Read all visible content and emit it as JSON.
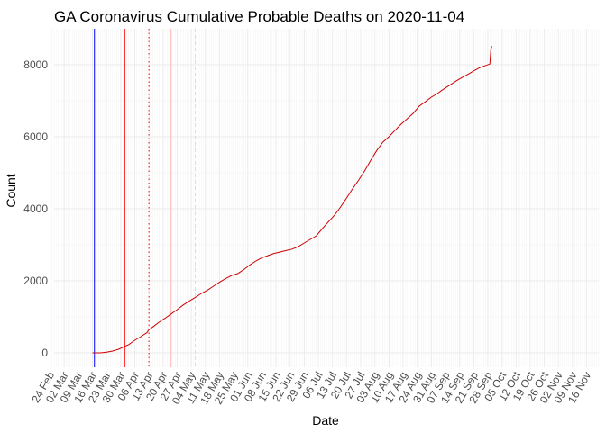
{
  "chart_data": {
    "type": "line",
    "title": "GA Coronavirus Cumulative Probable Deaths on 2020-11-04",
    "xlabel": "Date",
    "ylabel": "Count",
    "x_range_days": [
      -5,
      265
    ],
    "ylim": [
      -400,
      9000
    ],
    "x_origin_date": "2020-03-02",
    "y_ticks": [
      0,
      2000,
      4000,
      6000,
      8000
    ],
    "x_tick_labels": [
      "24 Feb",
      "02 Mar",
      "09 Mar",
      "16 Mar",
      "23 Mar",
      "30 Mar",
      "06 Apr",
      "13 Apr",
      "20 Apr",
      "27 Apr",
      "04 May",
      "11 May",
      "18 May",
      "25 May",
      "01 Jun",
      "08 Jun",
      "15 Jun",
      "22 Jun",
      "29 Jun",
      "06 Jul",
      "13 Jul",
      "20 Jul",
      "27 Jul",
      "03 Aug",
      "10 Aug",
      "17 Aug",
      "24 Aug",
      "31 Aug",
      "07 Sep",
      "14 Sep",
      "21 Sep",
      "28 Sep",
      "05 Oct",
      "12 Oct",
      "19 Oct",
      "26 Oct",
      "02 Nov",
      "09 Nov",
      "16 Nov"
    ],
    "x_tick_days": [
      -7,
      0,
      7,
      14,
      21,
      28,
      35,
      42,
      49,
      56,
      63,
      70,
      77,
      84,
      91,
      98,
      105,
      112,
      119,
      126,
      133,
      140,
      147,
      154,
      161,
      168,
      175,
      182,
      189,
      196,
      203,
      210,
      217,
      224,
      231,
      238,
      245,
      252,
      259
    ],
    "reference_lines": [
      {
        "day": 15,
        "color": "#0000ff",
        "style": "solid"
      },
      {
        "day": 30,
        "color": "#ff0000",
        "style": "solid"
      },
      {
        "day": 42,
        "color": "#ff0000",
        "style": "dotted"
      },
      {
        "day": 53,
        "color": "#ffb3b3",
        "style": "solid"
      },
      {
        "day": 65,
        "color": "#d9d9d9",
        "style": "dashed"
      }
    ],
    "series": [
      {
        "name": "Cumulative Probable Deaths",
        "color": "#cc0000",
        "points": [
          [
            14,
            0
          ],
          [
            18,
            0
          ],
          [
            21,
            20
          ],
          [
            24,
            50
          ],
          [
            27,
            100
          ],
          [
            30,
            180
          ],
          [
            32,
            230
          ],
          [
            35,
            350
          ],
          [
            38,
            450
          ],
          [
            41,
            560
          ],
          [
            42,
            640
          ],
          [
            44,
            720
          ],
          [
            47,
            850
          ],
          [
            50,
            960
          ],
          [
            53,
            1080
          ],
          [
            56,
            1200
          ],
          [
            59,
            1330
          ],
          [
            62,
            1440
          ],
          [
            65,
            1540
          ],
          [
            68,
            1650
          ],
          [
            71,
            1740
          ],
          [
            74,
            1850
          ],
          [
            77,
            1960
          ],
          [
            80,
            2060
          ],
          [
            83,
            2150
          ],
          [
            86,
            2200
          ],
          [
            89,
            2310
          ],
          [
            92,
            2440
          ],
          [
            95,
            2550
          ],
          [
            98,
            2640
          ],
          [
            101,
            2700
          ],
          [
            104,
            2760
          ],
          [
            107,
            2800
          ],
          [
            110,
            2840
          ],
          [
            113,
            2880
          ],
          [
            116,
            2950
          ],
          [
            119,
            3050
          ],
          [
            122,
            3150
          ],
          [
            125,
            3250
          ],
          [
            128,
            3450
          ],
          [
            131,
            3640
          ],
          [
            134,
            3820
          ],
          [
            137,
            4050
          ],
          [
            140,
            4300
          ],
          [
            143,
            4560
          ],
          [
            146,
            4800
          ],
          [
            149,
            5060
          ],
          [
            152,
            5350
          ],
          [
            155,
            5620
          ],
          [
            158,
            5850
          ],
          [
            161,
            6000
          ],
          [
            164,
            6180
          ],
          [
            167,
            6350
          ],
          [
            170,
            6500
          ],
          [
            173,
            6650
          ],
          [
            176,
            6850
          ],
          [
            179,
            6970
          ],
          [
            182,
            7100
          ],
          [
            185,
            7200
          ],
          [
            188,
            7320
          ],
          [
            191,
            7430
          ],
          [
            194,
            7540
          ],
          [
            197,
            7640
          ],
          [
            200,
            7730
          ],
          [
            203,
            7830
          ],
          [
            206,
            7920
          ],
          [
            209,
            7980
          ],
          [
            211,
            8020
          ],
          [
            211.5,
            8420
          ],
          [
            212,
            8520
          ]
        ]
      }
    ]
  }
}
